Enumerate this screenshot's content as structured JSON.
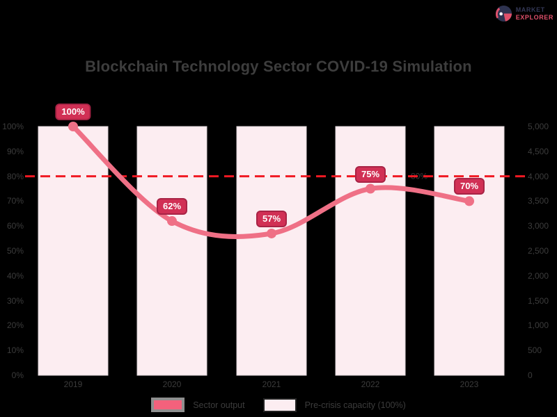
{
  "logo": {
    "line1": "MARKET",
    "line2": "EXPLORER"
  },
  "title": "Blockchain Technology Sector COVID-19 Simulation",
  "chart_data": {
    "type": "combo",
    "categories": [
      "2019",
      "2020",
      "2021",
      "2022",
      "2023"
    ],
    "series": [
      {
        "name": "Pre-crisis capacity (100%)",
        "type": "bar",
        "values": [
          100,
          100,
          100,
          100,
          100
        ],
        "color": "#fcedf1"
      },
      {
        "name": "Sector output",
        "type": "line",
        "values": [
          100,
          62,
          57,
          75,
          70
        ],
        "color": "#ef7086"
      }
    ],
    "data_labels": [
      "100%",
      "62%",
      "57%",
      "75%",
      "70%"
    ],
    "threshold": {
      "value": 80,
      "label": "80%",
      "color": "#f01a23",
      "style": "dashed"
    },
    "y_left": {
      "title": "",
      "min": 0,
      "max": 100,
      "ticks": [
        "100%",
        "90%",
        "80%",
        "70%",
        "60%",
        "50%",
        "40%",
        "30%",
        "20%",
        "10%",
        "0%"
      ]
    },
    "y_right": {
      "title": "",
      "ticks": [
        "5,000",
        "4,500",
        "4,000",
        "3,500",
        "3,000",
        "2,500",
        "2,000",
        "1,500",
        "1,000",
        "500",
        "0"
      ]
    },
    "grid": false,
    "legend_position": "bottom",
    "title": "Blockchain Technology Sector COVID-19 Simulation"
  },
  "legend": {
    "items": [
      {
        "label": "Sector output",
        "color": "#f4617c"
      },
      {
        "label": "Pre-crisis capacity (100%)",
        "color": "#fcedf1"
      }
    ]
  },
  "colors": {
    "background": "#000000",
    "bar_fill": "#fcedf1",
    "bar_border": "#ddd2d6",
    "line": "#ef7086",
    "badge_bg": "#d13055",
    "badge_border": "#a82345",
    "threshold": "#f01a23",
    "text": "#3c3c3c",
    "logo_navy": "#343856",
    "logo_pink": "#e0506b"
  }
}
